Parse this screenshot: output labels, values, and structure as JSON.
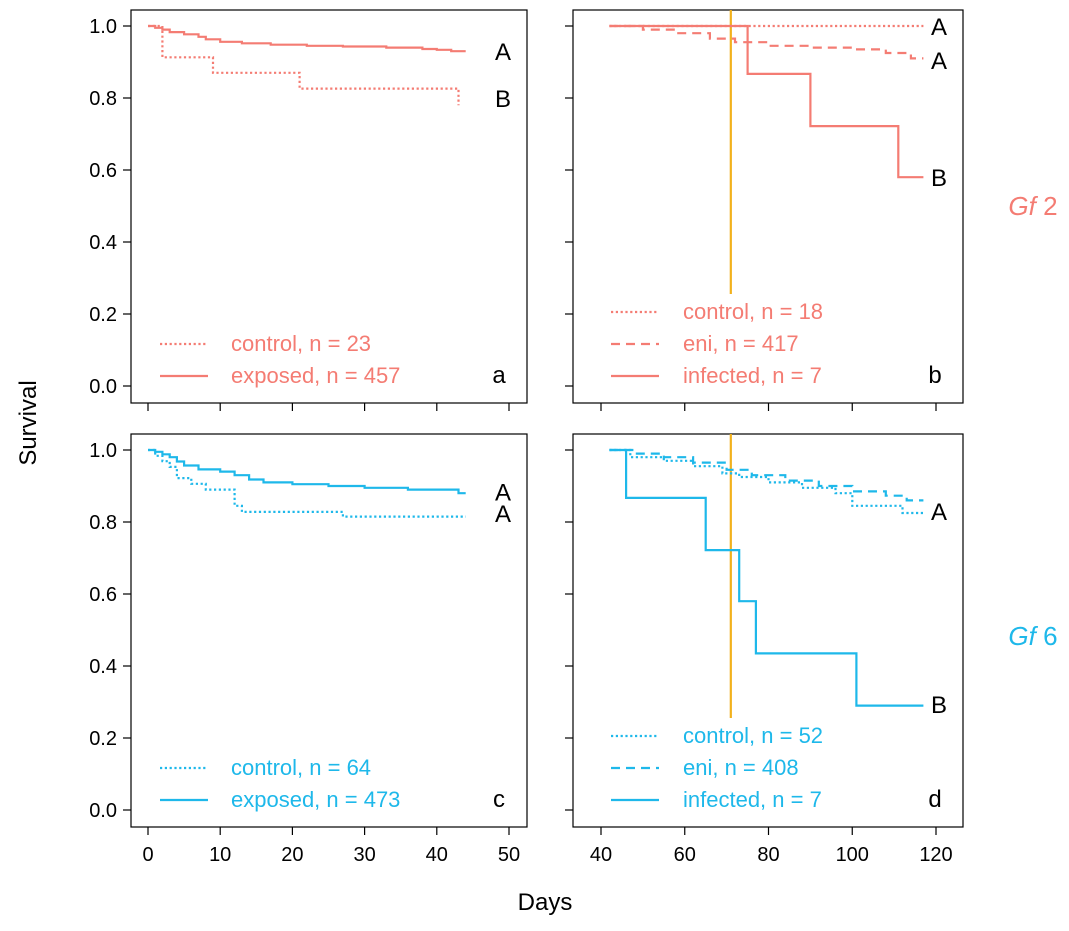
{
  "figure": {
    "ylabel": "Survival",
    "xlabel": "Days",
    "row_labels": [
      {
        "italic": "Gf",
        "text": " 2",
        "color": "#F47C73"
      },
      {
        "italic": "Gf",
        "text": " 6",
        "color": "#1EB8EA"
      }
    ],
    "colors": {
      "red": "#F47C73",
      "blue": "#1EB8EA",
      "marker": "#F2B11C",
      "axis": "#000000"
    }
  },
  "chart_data": [
    {
      "type": "line",
      "panel": "a",
      "color": "red",
      "xlim": [
        0,
        50
      ],
      "ylim": [
        0,
        1
      ],
      "xticks": [
        0,
        10,
        20,
        30,
        40,
        50
      ],
      "yticks": [
        "0.0",
        "0.2",
        "0.4",
        "0.6",
        "0.8",
        "1.0"
      ],
      "show_xtick_labels": false,
      "show_ytick_labels": true,
      "series": [
        {
          "name": "control, n = 23",
          "style": "dotted",
          "x": [
            0,
            2,
            2,
            9,
            9,
            21,
            21,
            43,
            43
          ],
          "y": [
            1.0,
            1.0,
            0.913,
            0.913,
            0.87,
            0.87,
            0.826,
            0.826,
            0.78
          ]
        },
        {
          "name": "exposed, n = 457",
          "style": "solid",
          "x": [
            0,
            1,
            1,
            2,
            2,
            3,
            3,
            5,
            5,
            7,
            7,
            8,
            8,
            10,
            10,
            13,
            13,
            17,
            17,
            22,
            22,
            27,
            27,
            33,
            33,
            38,
            38,
            40,
            40,
            42,
            42,
            44
          ],
          "y": [
            1.0,
            1.0,
            0.995,
            0.995,
            0.99,
            0.99,
            0.983,
            0.983,
            0.977,
            0.977,
            0.97,
            0.97,
            0.963,
            0.963,
            0.956,
            0.956,
            0.952,
            0.952,
            0.948,
            0.948,
            0.945,
            0.945,
            0.943,
            0.943,
            0.94,
            0.94,
            0.936,
            0.936,
            0.934,
            0.934,
            0.93,
            0.93
          ]
        }
      ],
      "letters": [
        {
          "text": "A",
          "y": 0.93
        },
        {
          "text": "B",
          "y": 0.8
        }
      ],
      "panel_label": "a"
    },
    {
      "type": "line",
      "panel": "b",
      "color": "red",
      "xlim": [
        40,
        120
      ],
      "ylim": [
        0,
        1
      ],
      "xticks": [
        40,
        60,
        80,
        100,
        120
      ],
      "yticks": [
        "0.0",
        "0.2",
        "0.4",
        "0.6",
        "0.8",
        "1.0"
      ],
      "show_xtick_labels": false,
      "show_ytick_labels": false,
      "vline": 71,
      "series": [
        {
          "name": "control, n = 18",
          "style": "dotted",
          "x": [
            42,
            117
          ],
          "y": [
            1.0,
            1.0
          ]
        },
        {
          "name": "eni, n = 417",
          "style": "dashed",
          "x": [
            42,
            50,
            50,
            58,
            58,
            66,
            66,
            72,
            72,
            80,
            80,
            90,
            90,
            100,
            100,
            108,
            108,
            114,
            114,
            117
          ],
          "y": [
            1.0,
            1.0,
            0.99,
            0.99,
            0.98,
            0.98,
            0.965,
            0.965,
            0.955,
            0.955,
            0.945,
            0.945,
            0.94,
            0.94,
            0.935,
            0.935,
            0.925,
            0.925,
            0.91,
            0.91
          ]
        },
        {
          "name": "infected, n = 7",
          "style": "solid",
          "x": [
            42,
            75,
            75,
            90,
            90,
            111,
            111,
            117
          ],
          "y": [
            1.0,
            1.0,
            0.867,
            0.867,
            0.722,
            0.722,
            0.58,
            0.58
          ]
        }
      ],
      "letters": [
        {
          "text": "A",
          "y": 1.0
        },
        {
          "text": "A",
          "y": 0.905
        },
        {
          "text": "B",
          "y": 0.58
        }
      ],
      "panel_label": "b"
    },
    {
      "type": "line",
      "panel": "c",
      "color": "blue",
      "xlim": [
        0,
        50
      ],
      "ylim": [
        0,
        1
      ],
      "xticks": [
        0,
        10,
        20,
        30,
        40,
        50
      ],
      "yticks": [
        "0.0",
        "0.2",
        "0.4",
        "0.6",
        "0.8",
        "1.0"
      ],
      "show_xtick_labels": true,
      "show_ytick_labels": true,
      "series": [
        {
          "name": "control, n = 64",
          "style": "dotted",
          "x": [
            0,
            1,
            1,
            2,
            2,
            3,
            3,
            4,
            4,
            6,
            6,
            8,
            8,
            12,
            12,
            13,
            13,
            27,
            27,
            44
          ],
          "y": [
            1.0,
            1.0,
            0.984,
            0.984,
            0.969,
            0.969,
            0.953,
            0.953,
            0.922,
            0.922,
            0.906,
            0.906,
            0.89,
            0.89,
            0.845,
            0.845,
            0.828,
            0.828,
            0.815,
            0.815
          ]
        },
        {
          "name": "exposed, n = 473",
          "style": "solid",
          "x": [
            0,
            1,
            1,
            2,
            2,
            3,
            3,
            4,
            4,
            5,
            5,
            7,
            7,
            10,
            10,
            12,
            12,
            14,
            14,
            16,
            16,
            20,
            20,
            25,
            25,
            30,
            30,
            36,
            36,
            43,
            43,
            44
          ],
          "y": [
            1.0,
            1.0,
            0.995,
            0.995,
            0.988,
            0.988,
            0.98,
            0.98,
            0.968,
            0.968,
            0.957,
            0.957,
            0.946,
            0.946,
            0.94,
            0.94,
            0.93,
            0.93,
            0.918,
            0.918,
            0.91,
            0.91,
            0.905,
            0.905,
            0.9,
            0.9,
            0.895,
            0.895,
            0.89,
            0.89,
            0.88,
            0.88
          ]
        }
      ],
      "letters": [
        {
          "text": "A",
          "y": 0.885
        },
        {
          "text": "A",
          "y": 0.825
        }
      ],
      "panel_label": "c"
    },
    {
      "type": "line",
      "panel": "d",
      "color": "blue",
      "xlim": [
        40,
        120
      ],
      "ylim": [
        0,
        1
      ],
      "xticks": [
        40,
        60,
        80,
        100,
        120
      ],
      "yticks": [
        "0.0",
        "0.2",
        "0.4",
        "0.6",
        "0.8",
        "1.0"
      ],
      "show_xtick_labels": true,
      "show_ytick_labels": false,
      "vline": 71,
      "series": [
        {
          "name": "control, n = 52",
          "style": "dotted",
          "x": [
            42,
            47,
            47,
            55,
            55,
            62,
            62,
            69,
            69,
            73,
            73,
            80,
            80,
            88,
            88,
            96,
            96,
            100,
            100,
            112,
            112,
            117
          ],
          "y": [
            1.0,
            1.0,
            0.98,
            0.98,
            0.97,
            0.97,
            0.955,
            0.955,
            0.935,
            0.935,
            0.925,
            0.925,
            0.91,
            0.91,
            0.895,
            0.895,
            0.88,
            0.88,
            0.845,
            0.845,
            0.825,
            0.825
          ]
        },
        {
          "name": "eni, n = 408",
          "style": "dashed",
          "x": [
            42,
            48,
            48,
            55,
            55,
            62,
            62,
            70,
            70,
            76,
            76,
            84,
            84,
            92,
            92,
            100,
            100,
            108,
            108,
            113,
            113,
            117
          ],
          "y": [
            1.0,
            1.0,
            0.99,
            0.99,
            0.98,
            0.98,
            0.965,
            0.965,
            0.945,
            0.945,
            0.93,
            0.93,
            0.915,
            0.915,
            0.9,
            0.9,
            0.885,
            0.885,
            0.873,
            0.873,
            0.86,
            0.86
          ]
        },
        {
          "name": "infected, n = 7",
          "style": "solid",
          "x": [
            42,
            46,
            46,
            65,
            65,
            73,
            73,
            77,
            77,
            101,
            101,
            117
          ],
          "y": [
            1.0,
            1.0,
            0.867,
            0.867,
            0.722,
            0.722,
            0.58,
            0.58,
            0.435,
            0.435,
            0.29,
            0.29
          ]
        }
      ],
      "letters": [
        {
          "text": "A",
          "y": 0.83
        },
        {
          "text": "B",
          "y": 0.295
        }
      ],
      "panel_label": "d"
    }
  ]
}
